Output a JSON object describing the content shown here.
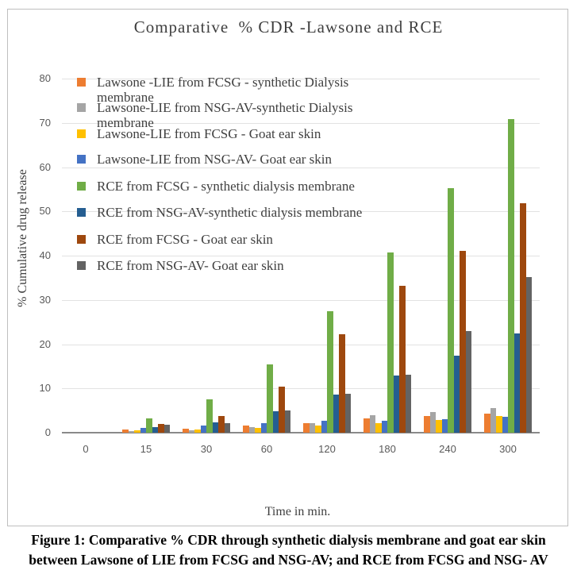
{
  "figure": {
    "caption_line1": "Figure 1: Comparative % CDR through synthetic dialysis membrane and goat ear skin",
    "caption_line2": "between Lawsone of LIE from FCSG and NSG-AV; and RCE from FCSG and NSG- AV"
  },
  "chart_data": {
    "type": "bar",
    "title": "Comparative  % CDR -Lawsone and RCE",
    "xlabel": "Time in min.",
    "ylabel": "% Cumulative drug release",
    "ylim": [
      0,
      80
    ],
    "yticks": [
      0,
      10,
      20,
      30,
      40,
      50,
      60,
      70,
      80
    ],
    "grid": true,
    "legend_position": "inside-top-left",
    "categories": [
      "0",
      "15",
      "30",
      "60",
      "120",
      "180",
      "240",
      "300"
    ],
    "series": [
      {
        "name": "Lawsone -LIE from FCSG - synthetic Dialysis membrane",
        "color": "#ED7D31",
        "values": [
          0,
          0.7,
          0.9,
          1.7,
          2.2,
          3.2,
          3.8,
          4.3
        ]
      },
      {
        "name": "Lawsone-LIE from NSG-AV-synthetic Dialysis membrane",
        "color": "#A5A5A5",
        "values": [
          0,
          0.3,
          0.5,
          1.2,
          2.2,
          4.0,
          4.6,
          5.6
        ]
      },
      {
        "name": "Lawsone-LIE from FCSG - Goat ear skin",
        "color": "#FFC000",
        "values": [
          0,
          0.5,
          0.7,
          1.0,
          1.7,
          2.2,
          2.8,
          3.7
        ]
      },
      {
        "name": "Lawsone-LIE from NSG-AV- Goat ear skin",
        "color": "#4472C4",
        "values": [
          0,
          1.0,
          1.7,
          2.2,
          2.7,
          2.7,
          3.0,
          3.6
        ]
      },
      {
        "name": "RCE from FCSG - synthetic dialysis membrane",
        "color": "#70AD47",
        "values": [
          0,
          3.2,
          7.5,
          15.4,
          27.5,
          40.7,
          55.3,
          70.8
        ]
      },
      {
        "name": "RCE from NSG-AV-synthetic dialysis membrane",
        "color": "#255E91",
        "values": [
          0,
          1.2,
          2.4,
          4.8,
          8.7,
          13.0,
          17.4,
          22.4
        ]
      },
      {
        "name": "RCE from FCSG - Goat ear skin",
        "color": "#9E480E",
        "values": [
          0,
          2.0,
          3.8,
          10.5,
          22.3,
          33.2,
          41.0,
          51.8
        ]
      },
      {
        "name": "RCE from NSG-AV- Goat ear skin",
        "color": "#636363",
        "values": [
          0,
          1.8,
          2.2,
          5.1,
          8.8,
          13.1,
          23.0,
          35.2
        ]
      }
    ]
  }
}
